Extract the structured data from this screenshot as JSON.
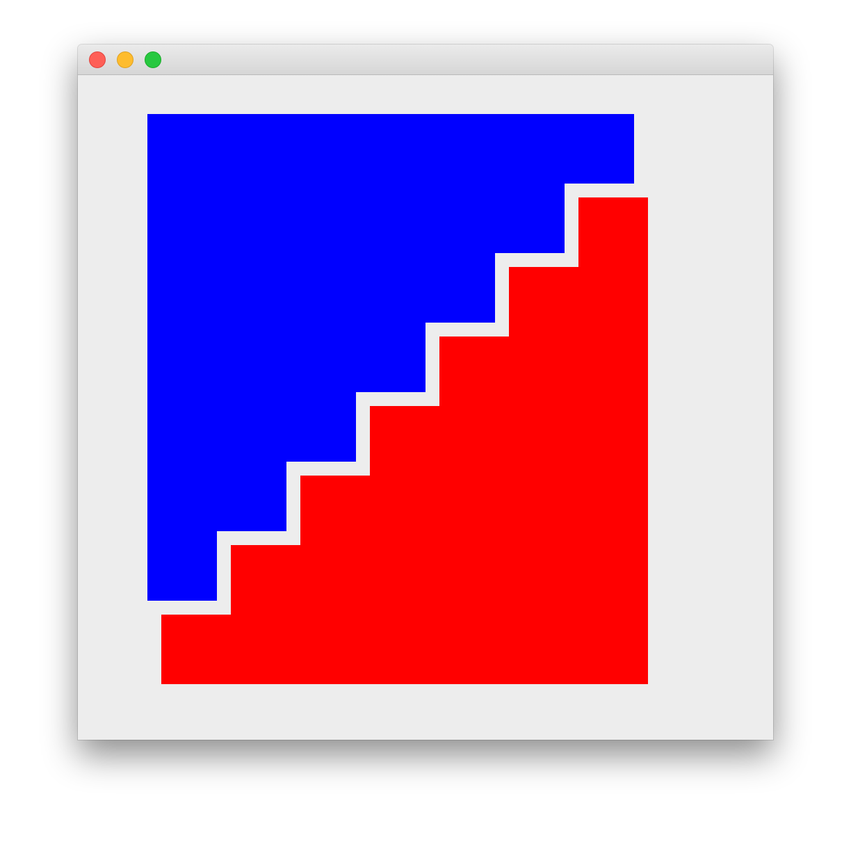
{
  "window": {
    "titlebar_color": "#dcdcdc",
    "content_background": "#ededed",
    "controls": [
      {
        "name": "close",
        "color": "#fe5f57",
        "border": "#e0443e"
      },
      {
        "name": "minimize",
        "color": "#febc2e",
        "border": "#dea123"
      },
      {
        "name": "zoom",
        "color": "#28c840",
        "border": "#1aab29"
      }
    ]
  },
  "shapes": [
    {
      "name": "blue-staircase",
      "color": "#0000ff"
    },
    {
      "name": "red-staircase",
      "color": "#ff0000"
    }
  ]
}
